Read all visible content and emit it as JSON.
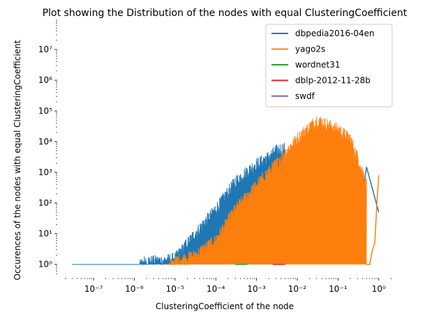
{
  "chart_data": {
    "type": "line",
    "title": "Plot showing the Distribution of the nodes with equal ClusteringCoefficient",
    "xlabel": "ClusteringCoefficient of the node",
    "ylabel": "Occurences of the nodes with equal ClusteringCoefficient",
    "x_scale": "log",
    "y_scale": "log",
    "xlim": [
      1.5e-08,
      2.5
    ],
    "ylim": [
      0.5,
      100000000.0
    ],
    "grid": false,
    "legend_position": "top-right",
    "x_ticks": [
      {
        "value": 1e-07,
        "label": "10⁻⁷"
      },
      {
        "value": 1e-06,
        "label": "10⁻⁶"
      },
      {
        "value": 1e-05,
        "label": "10⁻⁵"
      },
      {
        "value": 0.0001,
        "label": "10⁻⁴"
      },
      {
        "value": 0.001,
        "label": "10⁻³"
      },
      {
        "value": 0.01,
        "label": "10⁻²"
      },
      {
        "value": 0.1,
        "label": "10⁻¹"
      },
      {
        "value": 1,
        "label": "10⁰"
      }
    ],
    "y_ticks": [
      {
        "value": 1,
        "label": "10⁰"
      },
      {
        "value": 10,
        "label": "10¹"
      },
      {
        "value": 100,
        "label": "10²"
      },
      {
        "value": 1000,
        "label": "10³"
      },
      {
        "value": 10000,
        "label": "10⁴"
      },
      {
        "value": 100000,
        "label": "10⁵"
      },
      {
        "value": 1000000,
        "label": "10⁶"
      },
      {
        "value": 10000000,
        "label": "10⁷"
      }
    ],
    "series": [
      {
        "name": "dbpedia2016-04en",
        "color": "#1f77b4",
        "style": "dense-oscillation",
        "envelope": {
          "x": [
            3e-08,
            1e-06,
            1.8e-06,
            5e-06,
            1e-05,
            3e-05,
            0.0001,
            0.0003,
            0.001,
            0.002,
            0.003,
            0.005
          ],
          "y": [
            1,
            1,
            2,
            2,
            2.5,
            15,
            100,
            800,
            3000,
            5000,
            8000,
            10000
          ]
        },
        "tail": {
          "x": [
            0.35,
            0.5,
            1.0
          ],
          "y": [
            50,
            1500,
            50
          ]
        }
      },
      {
        "name": "yago2s",
        "color": "#ff7f0e",
        "style": "dense-oscillation",
        "envelope": {
          "x": [
            6e-06,
            1e-05,
            3e-05,
            0.0001,
            0.0003,
            0.001,
            0.003,
            0.01,
            0.03,
            0.05,
            0.1,
            0.2,
            0.3,
            0.5
          ],
          "y": [
            1,
            2,
            3,
            10,
            100,
            600,
            3000,
            20000,
            80000,
            60000,
            40000,
            20000,
            5000,
            700
          ]
        },
        "tail": {
          "x": [
            0.5,
            0.6,
            0.7,
            0.8,
            0.9,
            1.0
          ],
          "y": [
            1,
            1,
            3,
            5,
            100,
            800
          ]
        }
      },
      {
        "name": "wordnet31",
        "color": "#2ca02c",
        "style": "line",
        "x": [
          0.0003,
          0.0006
        ],
        "y": [
          1,
          1
        ]
      },
      {
        "name": "dblp-2012-11-28b",
        "color": "#d62728",
        "style": "line",
        "x": [
          0.0025,
          0.005
        ],
        "y": [
          1,
          1
        ]
      },
      {
        "name": "swdf",
        "color": "#9467bd",
        "style": "line",
        "x": [],
        "y": []
      }
    ]
  }
}
